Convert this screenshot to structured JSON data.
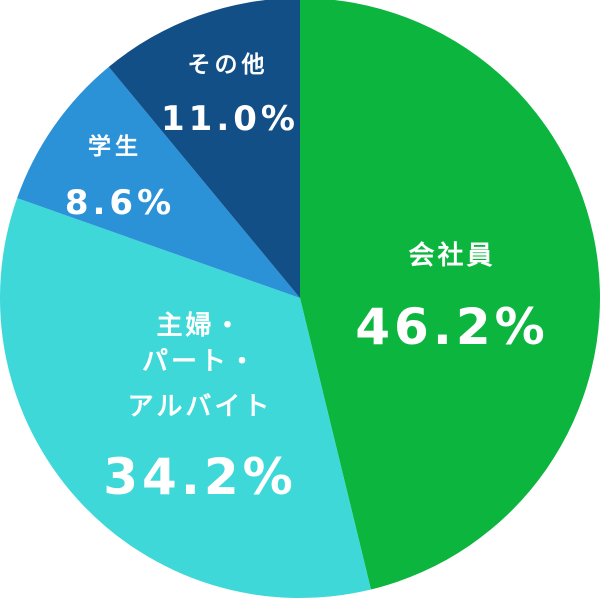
{
  "chart_data": {
    "type": "pie",
    "start": "top",
    "direction": "clockwise",
    "slices": [
      {
        "label_lines": [
          "会社員"
        ],
        "value_label": "46.2%",
        "value": 46.2,
        "color": "#0cb53e"
      },
      {
        "label_lines": [
          "主婦・",
          "パート・",
          "アルバイト"
        ],
        "value_label": "34.2%",
        "value": 34.2,
        "color": "#3ed8d8"
      },
      {
        "label_lines": [
          "学生"
        ],
        "value_label": "8.6%",
        "value": 8.6,
        "color": "#2b92d8"
      },
      {
        "label_lines": [
          "その他"
        ],
        "value_label": "11.0%",
        "value": 11.0,
        "color": "#124f87"
      }
    ]
  }
}
